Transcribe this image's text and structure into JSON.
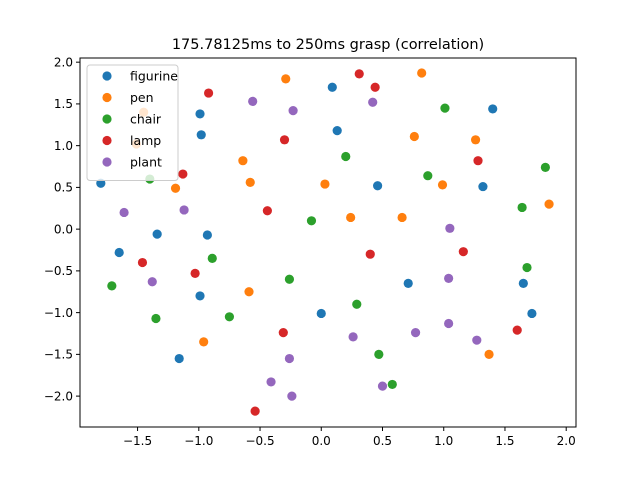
{
  "chart_data": {
    "type": "scatter",
    "title": "175.78125ms to 250ms grasp (correlation)",
    "xlabel": "",
    "ylabel": "",
    "xlim": [
      -1.97,
      2.08
    ],
    "ylim": [
      -2.37,
      2.05
    ],
    "xticks": [
      -1.5,
      -1.0,
      -0.5,
      0.0,
      0.5,
      1.0,
      1.5,
      2.0
    ],
    "xtick_labels": [
      "−1.5",
      "−1.0",
      "−0.5",
      "0.0",
      "0.5",
      "1.0",
      "1.5",
      "2.0"
    ],
    "yticks": [
      -2.0,
      -1.5,
      -1.0,
      -0.5,
      0.0,
      0.5,
      1.0,
      1.5,
      2.0
    ],
    "ytick_labels": [
      "−2.0",
      "−1.5",
      "−1.0",
      "−0.5",
      "0.0",
      "0.5",
      "1.0",
      "1.5",
      "2.0"
    ],
    "grid": false,
    "legend_position": "top-left",
    "series": [
      {
        "name": "figurine",
        "color": "#1f77b4",
        "points": [
          [
            0.09,
            1.7
          ],
          [
            1.4,
            1.44
          ],
          [
            -0.99,
            1.38
          ],
          [
            -0.98,
            1.13
          ],
          [
            0.13,
            1.18
          ],
          [
            -1.8,
            0.55
          ],
          [
            0.46,
            0.52
          ],
          [
            1.32,
            0.51
          ],
          [
            -1.34,
            -0.06
          ],
          [
            -0.93,
            -0.07
          ],
          [
            -1.65,
            -0.28
          ],
          [
            0.71,
            -0.65
          ],
          [
            1.65,
            -0.65
          ],
          [
            -0.99,
            -0.8
          ],
          [
            0.0,
            -1.01
          ],
          [
            1.72,
            -1.01
          ],
          [
            -1.16,
            -1.55
          ]
        ]
      },
      {
        "name": "pen",
        "color": "#ff7f0e",
        "points": [
          [
            0.82,
            1.87
          ],
          [
            -0.29,
            1.8
          ],
          [
            -1.45,
            1.4
          ],
          [
            -1.51,
            1.02
          ],
          [
            0.76,
            1.11
          ],
          [
            1.26,
            1.07
          ],
          [
            -0.64,
            0.82
          ],
          [
            -0.58,
            0.56
          ],
          [
            -1.19,
            0.49
          ],
          [
            0.03,
            0.54
          ],
          [
            0.99,
            0.53
          ],
          [
            1.86,
            0.3
          ],
          [
            0.24,
            0.14
          ],
          [
            0.66,
            0.14
          ],
          [
            -0.59,
            -0.75
          ],
          [
            -0.96,
            -1.35
          ],
          [
            1.37,
            -1.5
          ]
        ]
      },
      {
        "name": "chair",
        "color": "#2ca02c",
        "points": [
          [
            1.01,
            1.45
          ],
          [
            0.2,
            0.87
          ],
          [
            1.83,
            0.74
          ],
          [
            0.87,
            0.64
          ],
          [
            -1.4,
            0.6
          ],
          [
            1.64,
            0.26
          ],
          [
            -0.08,
            0.1
          ],
          [
            -0.89,
            -0.35
          ],
          [
            1.68,
            -0.46
          ],
          [
            -0.26,
            -0.6
          ],
          [
            -1.71,
            -0.68
          ],
          [
            0.29,
            -0.9
          ],
          [
            -1.35,
            -1.07
          ],
          [
            -0.75,
            -1.05
          ],
          [
            0.47,
            -1.5
          ],
          [
            0.58,
            -1.86
          ]
        ]
      },
      {
        "name": "lamp",
        "color": "#d62728",
        "points": [
          [
            0.31,
            1.86
          ],
          [
            0.44,
            1.7
          ],
          [
            -0.92,
            1.63
          ],
          [
            -0.3,
            1.07
          ],
          [
            1.28,
            0.82
          ],
          [
            -1.13,
            0.66
          ],
          [
            -0.44,
            0.22
          ],
          [
            1.16,
            -0.27
          ],
          [
            0.4,
            -0.3
          ],
          [
            -1.46,
            -0.4
          ],
          [
            -1.03,
            -0.53
          ],
          [
            -0.31,
            -1.24
          ],
          [
            1.6,
            -1.21
          ],
          [
            -0.54,
            -2.18
          ]
        ]
      },
      {
        "name": "plant",
        "color": "#9467bd",
        "points": [
          [
            -0.56,
            1.53
          ],
          [
            0.42,
            1.52
          ],
          [
            -0.23,
            1.42
          ],
          [
            -1.12,
            0.23
          ],
          [
            -1.61,
            0.2
          ],
          [
            1.05,
            0.01
          ],
          [
            -1.38,
            -0.63
          ],
          [
            1.04,
            -0.59
          ],
          [
            0.77,
            -1.24
          ],
          [
            1.04,
            -1.13
          ],
          [
            0.26,
            -1.29
          ],
          [
            1.27,
            -1.33
          ],
          [
            -0.26,
            -1.55
          ],
          [
            -0.41,
            -1.83
          ],
          [
            0.5,
            -1.88
          ],
          [
            -0.24,
            -2.0
          ]
        ]
      }
    ]
  }
}
